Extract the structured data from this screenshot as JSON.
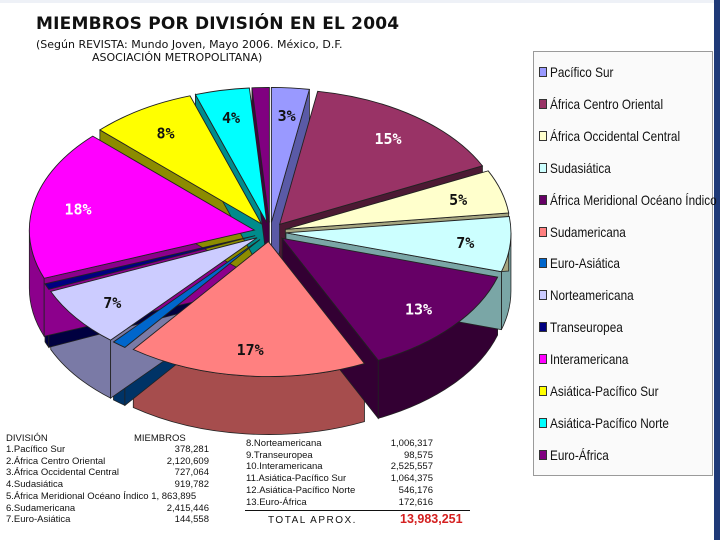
{
  "title": "MIEMBROS POR DIVISIÓN EN EL 2004",
  "subtitle_line1": "(Según REVISTA: Mundo Joven, Mayo 2006. México, D.F.",
  "subtitle_line2": "ASOCIACIÓN METROPOLITANA)",
  "table": {
    "header_division": "DIVISIÓN",
    "header_members": "MIEMBROS",
    "left_rows": [
      {
        "name": "1.Pacífico Sur",
        "value": "378,281"
      },
      {
        "name": "2.África Centro Oriental",
        "value": "2,120,609"
      },
      {
        "name": "3.África Occidental Central",
        "value": "727,064"
      },
      {
        "name": "4.Sudasiática",
        "value": "919,782"
      },
      {
        "name": "5.África Meridional Océano Índico 1, 863,895",
        "value": ""
      },
      {
        "name": "6.Sudamericana",
        "value": "2,415,446"
      },
      {
        "name": "7.Euro-Asiática",
        "value": "144,558"
      }
    ],
    "right_rows": [
      {
        "name": "8.Norteamericana",
        "value": "1,006,317"
      },
      {
        "name": "9.Transeuropea",
        "value": "98,575"
      },
      {
        "name": "10.Interamericana",
        "value": "2,525,557"
      },
      {
        "name": "11.Asiática-Pacífico Sur",
        "value": "1,064,375"
      },
      {
        "name": "12.Asiática-Pacífico Norte",
        "value": "546,176"
      },
      {
        "name": "13.Euro-África",
        "value": "172,616"
      }
    ],
    "total_label": "TOTAL APROX.",
    "total_value": "13,983,251"
  },
  "colors": {
    "accent_total": "#d42020",
    "frame": "#1f3a78"
  },
  "chart_data": {
    "type": "pie",
    "title": "MIEMBROS POR DIVISIÓN EN EL 2004",
    "legend_position": "right",
    "slices": [
      {
        "name": "Pacífico Sur",
        "value": 378281,
        "label": "3%",
        "color": "#9999ff",
        "dark": "#5a5aa6"
      },
      {
        "name": "África Centro Oriental",
        "value": 2120609,
        "label": "15%",
        "color": "#993366",
        "dark": "#4c1933"
      },
      {
        "name": "África Occidental Central",
        "value": 727064,
        "label": "5%",
        "color": "#ffffcc",
        "dark": "#a6a680"
      },
      {
        "name": "Sudasiática",
        "value": 919782,
        "label": "7%",
        "color": "#ccffff",
        "dark": "#7aa6a6"
      },
      {
        "name": "África Meridional Océano Índico",
        "value": 1863895,
        "label": "13%",
        "color": "#660066",
        "dark": "#330033"
      },
      {
        "name": "Sudamericana",
        "value": 2415446,
        "label": "17%",
        "color": "#ff8080",
        "dark": "#a64d4d"
      },
      {
        "name": "Euro-Asiática",
        "value": 144558,
        "label": "",
        "color": "#0066cc",
        "dark": "#003366"
      },
      {
        "name": "Norteamericana",
        "value": 1006317,
        "label": "7%",
        "color": "#ccccff",
        "dark": "#7a7aa6"
      },
      {
        "name": "Transeuropea",
        "value": 98575,
        "label": "",
        "color": "#000080",
        "dark": "#000040"
      },
      {
        "name": "Interamericana",
        "value": 2525557,
        "label": "18%",
        "color": "#ff00ff",
        "dark": "#8c008c"
      },
      {
        "name": "Asiática-Pacífico Sur",
        "value": 1064375,
        "label": "8%",
        "color": "#ffff00",
        "dark": "#8c8c00"
      },
      {
        "name": "Asiática-Pacífico Norte",
        "value": 546176,
        "label": "4%",
        "color": "#00ffff",
        "dark": "#008c8c"
      },
      {
        "name": "Euro-África",
        "value": 172616,
        "label": "",
        "color": "#800080",
        "dark": "#400040"
      }
    ]
  }
}
